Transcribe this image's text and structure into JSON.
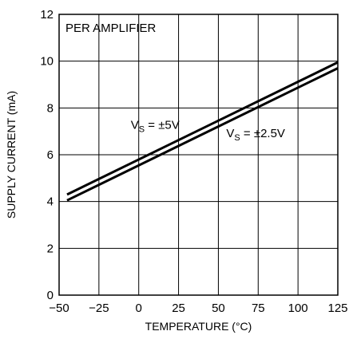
{
  "chart_data": {
    "type": "line",
    "title": "",
    "xlabel": "TEMPERATURE (°C)",
    "ylabel": "SUPPLY CURRENT (mA)",
    "xlim": [
      -50,
      125
    ],
    "ylim": [
      0,
      12
    ],
    "xticks": [
      -50,
      -25,
      0,
      25,
      50,
      75,
      100,
      125
    ],
    "yticks": [
      0,
      2,
      4,
      6,
      8,
      10,
      12
    ],
    "xtick_labels": [
      "−50",
      "−25",
      "0",
      "25",
      "50",
      "75",
      "100",
      "125"
    ],
    "ytick_labels": [
      "0",
      "2",
      "4",
      "6",
      "8",
      "10",
      "12"
    ],
    "grid": true,
    "legend": "none",
    "inset_label": "PER AMPLIFIER",
    "series": [
      {
        "label_main": "V",
        "label_sub": "S",
        "label_rest": " = ±5V",
        "x": [
          -45,
          125
        ],
        "y": [
          4.3,
          9.95
        ],
        "color": "#000000"
      },
      {
        "label_main": "V",
        "label_sub": "S",
        "label_rest": " = ±2.5V",
        "x": [
          -45,
          125
        ],
        "y": [
          4.05,
          9.7
        ],
        "color": "#000000"
      }
    ]
  }
}
